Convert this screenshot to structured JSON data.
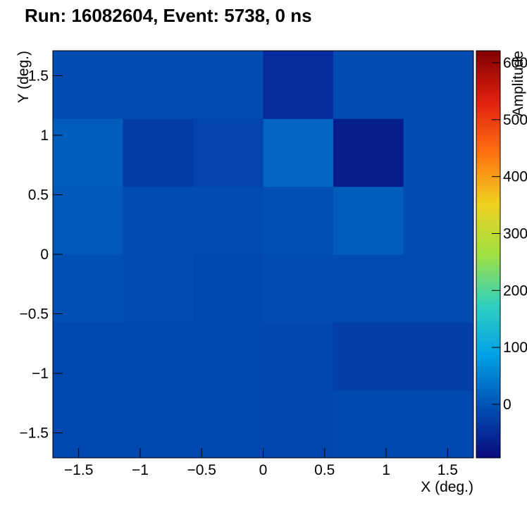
{
  "chart_data": {
    "type": "heatmap",
    "title": "Run: 16082604, Event: 5738, 0 ns",
    "x_label": "X (deg.)",
    "y_label": "Y (deg.)",
    "z_label": "Amplitude",
    "xbins": [
      -1.71,
      -1.14,
      -0.57,
      0,
      0.57,
      1.14,
      1.71
    ],
    "ybins": [
      -1.71,
      -1.14,
      -0.57,
      0,
      0.57,
      1.14,
      1.71
    ],
    "values": [
      [
        -15,
        -15,
        -15,
        -18,
        -15,
        -15
      ],
      [
        -15,
        -15,
        -15,
        -18,
        -25,
        -25
      ],
      [
        -5,
        -10,
        -15,
        -10,
        -10,
        -10
      ],
      [
        5,
        -10,
        -10,
        -5,
        10,
        -10
      ],
      [
        10,
        -30,
        -20,
        20,
        -70,
        -10
      ],
      [
        -10,
        -10,
        -10,
        -50,
        -10,
        -10
      ]
    ],
    "xlim": [
      -1.71,
      1.71
    ],
    "ylim": [
      -1.71,
      1.71
    ],
    "zlim": [
      -94,
      621
    ],
    "xticks": [
      {
        "value": -1.5,
        "label": "−1.5"
      },
      {
        "value": -1,
        "label": "−1"
      },
      {
        "value": -0.5,
        "label": "−0.5"
      },
      0,
      0.5,
      1,
      1.5
    ],
    "yticks": [
      {
        "value": -1.5,
        "label": "−1.5"
      },
      {
        "value": -1,
        "label": "−1"
      },
      {
        "value": -0.5,
        "label": "−0.5"
      },
      0,
      0.5,
      1,
      1.5
    ],
    "zticks": [
      0,
      100,
      200,
      300,
      400,
      500,
      600
    ],
    "colorscale": [
      "#0a0a80",
      "#0050b4",
      "#00a0e6",
      "#30d0c0",
      "#a0e040",
      "#f0d020",
      "#ff7010",
      "#e02010",
      "#800000"
    ]
  }
}
